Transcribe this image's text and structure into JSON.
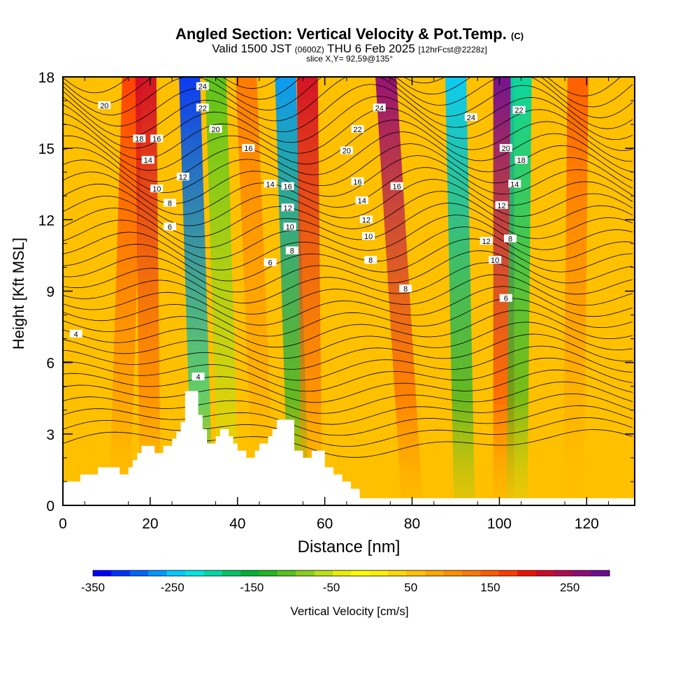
{
  "chart_data": {
    "type": "heatmap",
    "title": {
      "main": "Angled Section: Vertical Velocity & Pot.Temp.",
      "unit_tag": "(C)",
      "valid_prefix": "Valid 1500 JST",
      "valid_utc": "(0600Z)",
      "valid_day": "THU 6 Feb 2025",
      "forecast": "[12hrFcst@2228z]",
      "slice": "slice X,Y= 92,59@135°"
    },
    "xlabel": "Distance [nm]",
    "ylabel": "Height [Kft MSL]",
    "xlim": [
      0,
      131
    ],
    "ylim": [
      0,
      18
    ],
    "x_ticks": [
      "0",
      "20",
      "40",
      "60",
      "80",
      "100",
      "120"
    ],
    "y_ticks": [
      "0",
      "3",
      "6",
      "9",
      "12",
      "15",
      "18"
    ],
    "colorbar": {
      "label": "Vertical Velocity [cm/s]",
      "tick_labels": [
        "-350",
        "-250",
        "-150",
        "-50",
        "50",
        "150",
        "250"
      ],
      "levels": [
        -350,
        300
      ],
      "colors": [
        "#0000ff",
        "#0033ff",
        "#0066ff",
        "#0099ff",
        "#00ccff",
        "#00e6e6",
        "#00d9a6",
        "#00c466",
        "#00b236",
        "#22b822",
        "#55c21e",
        "#88d01a",
        "#bbe015",
        "#e6f000",
        "#ffff00",
        "#fff000",
        "#ffd800",
        "#ffc000",
        "#ffa800",
        "#ff9000",
        "#ff7800",
        "#ff5a00",
        "#ff3c00",
        "#f01400",
        "#d00a28",
        "#b00a50",
        "#900a78",
        "#6e0a96"
      ]
    },
    "plumes": [
      {
        "x_top": 16,
        "x_bottom": 13,
        "velocity": 180
      },
      {
        "x_top": 19,
        "x_bottom": 20,
        "velocity": 220
      },
      {
        "x_top": 29,
        "x_bottom": 32,
        "velocity": -320
      },
      {
        "x_top": 35,
        "x_bottom": 38,
        "velocity": -100
      },
      {
        "x_top": 42,
        "x_bottom": 46,
        "velocity": 120
      },
      {
        "x_top": 51,
        "x_bottom": 54,
        "velocity": -260
      },
      {
        "x_top": 56,
        "x_bottom": 57,
        "velocity": 220
      },
      {
        "x_top": 74,
        "x_bottom": 80,
        "velocity": 260
      },
      {
        "x_top": 90,
        "x_bottom": 92,
        "velocity": -250
      },
      {
        "x_top": 101,
        "x_bottom": 101,
        "velocity": 300
      },
      {
        "x_top": 105,
        "x_bottom": 104,
        "velocity": -200
      },
      {
        "x_top": 118,
        "x_bottom": 117,
        "velocity": 150
      }
    ],
    "contour_labels": [
      {
        "text": "24",
        "x": 32,
        "y": 17.6
      },
      {
        "text": "22",
        "x": 32,
        "y": 16.7
      },
      {
        "text": "20",
        "x": 35,
        "y": 15.8
      },
      {
        "text": "20",
        "x": 9.5,
        "y": 16.8
      },
      {
        "text": "18",
        "x": 17.5,
        "y": 15.4
      },
      {
        "text": "16",
        "x": 21.5,
        "y": 15.4
      },
      {
        "text": "14",
        "x": 19.5,
        "y": 14.5
      },
      {
        "text": "12",
        "x": 27.5,
        "y": 13.8
      },
      {
        "text": "10",
        "x": 21.5,
        "y": 13.3
      },
      {
        "text": "8",
        "x": 24.5,
        "y": 12.7
      },
      {
        "text": "6",
        "x": 24.5,
        "y": 11.7
      },
      {
        "text": "16",
        "x": 42.5,
        "y": 15.0
      },
      {
        "text": "14",
        "x": 47.5,
        "y": 13.5
      },
      {
        "text": "16",
        "x": 51.5,
        "y": 13.4
      },
      {
        "text": "12",
        "x": 51.5,
        "y": 12.5
      },
      {
        "text": "10",
        "x": 52.0,
        "y": 11.7
      },
      {
        "text": "8",
        "x": 52.5,
        "y": 10.7
      },
      {
        "text": "6",
        "x": 47.5,
        "y": 10.2
      },
      {
        "text": "24",
        "x": 72.5,
        "y": 16.7
      },
      {
        "text": "22",
        "x": 67.5,
        "y": 15.8
      },
      {
        "text": "20",
        "x": 65.0,
        "y": 14.9
      },
      {
        "text": "16",
        "x": 67.5,
        "y": 13.6
      },
      {
        "text": "16",
        "x": 76.5,
        "y": 13.4
      },
      {
        "text": "14",
        "x": 68.5,
        "y": 12.8
      },
      {
        "text": "12",
        "x": 69.5,
        "y": 12.0
      },
      {
        "text": "10",
        "x": 70.0,
        "y": 11.3
      },
      {
        "text": "8",
        "x": 70.5,
        "y": 10.3
      },
      {
        "text": "8",
        "x": 78.5,
        "y": 9.1
      },
      {
        "text": "24",
        "x": 93.5,
        "y": 16.3
      },
      {
        "text": "22",
        "x": 104.5,
        "y": 16.6
      },
      {
        "text": "20",
        "x": 101.5,
        "y": 15.0
      },
      {
        "text": "18",
        "x": 105.0,
        "y": 14.5
      },
      {
        "text": "14",
        "x": 103.5,
        "y": 13.5
      },
      {
        "text": "12",
        "x": 100.5,
        "y": 12.6
      },
      {
        "text": "12",
        "x": 97.0,
        "y": 11.1
      },
      {
        "text": "8",
        "x": 102.5,
        "y": 11.2
      },
      {
        "text": "10",
        "x": 99.0,
        "y": 10.3
      },
      {
        "text": "6",
        "x": 101.5,
        "y": 8.7
      },
      {
        "text": "4",
        "x": 3.0,
        "y": 7.2
      },
      {
        "text": "4",
        "x": 31.0,
        "y": 5.4
      }
    ],
    "grid": false,
    "legend": "bottom"
  }
}
